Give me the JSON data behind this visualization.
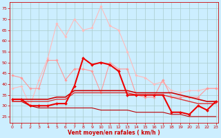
{
  "x": [
    0,
    1,
    2,
    3,
    4,
    5,
    6,
    7,
    8,
    9,
    10,
    11,
    12,
    13,
    14,
    15,
    16,
    17,
    18,
    19,
    20,
    21,
    22,
    23
  ],
  "series": [
    {
      "values": [
        44,
        43,
        38,
        38,
        51,
        51,
        42,
        47,
        47,
        46,
        36,
        50,
        47,
        47,
        35,
        34,
        34,
        42,
        34,
        34,
        34,
        34,
        38,
        38
      ],
      "color": "#ff9999",
      "lw": 0.8,
      "marker": "D",
      "ms": 1.8,
      "zorder": 3
    },
    {
      "values": [
        38,
        39,
        30,
        42,
        52,
        68,
        62,
        70,
        65,
        66,
        76,
        67,
        65,
        55,
        44,
        43,
        40,
        41,
        37,
        36,
        37,
        37,
        38,
        38
      ],
      "color": "#ffbbbb",
      "lw": 0.8,
      "marker": "D",
      "ms": 1.8,
      "zorder": 2
    },
    {
      "values": [
        33,
        33,
        33,
        33,
        33,
        34,
        34,
        37,
        37,
        37,
        37,
        37,
        37,
        37,
        36,
        36,
        36,
        36,
        36,
        35,
        34,
        33,
        32,
        32
      ],
      "color": "#cc0000",
      "lw": 1.2,
      "marker": null,
      "ms": 0,
      "zorder": 4
    },
    {
      "values": [
        32,
        32,
        32,
        32,
        32,
        33,
        33,
        36,
        36,
        36,
        36,
        36,
        36,
        36,
        35,
        35,
        35,
        35,
        34,
        33,
        32,
        31,
        31,
        31
      ],
      "color": "#dd3333",
      "lw": 1.0,
      "marker": null,
      "ms": 0,
      "zorder": 4
    },
    {
      "values": [
        33,
        33,
        30,
        30,
        30,
        31,
        31,
        39,
        52,
        49,
        50,
        49,
        46,
        35,
        35,
        35,
        35,
        35,
        27,
        27,
        26,
        30,
        28,
        32
      ],
      "color": "#ee0000",
      "lw": 1.5,
      "marker": "D",
      "ms": 2.0,
      "zorder": 5
    },
    {
      "values": [
        32,
        32,
        30,
        29,
        29,
        29,
        29,
        29,
        29,
        29,
        28,
        28,
        28,
        28,
        27,
        27,
        27,
        27,
        26,
        26,
        25,
        25,
        25,
        25
      ],
      "color": "#bb0000",
      "lw": 0.8,
      "marker": null,
      "ms": 0,
      "zorder": 3
    }
  ],
  "xlim": [
    -0.3,
    23.3
  ],
  "ylim": [
    22,
    78
  ],
  "yticks": [
    25,
    30,
    35,
    40,
    45,
    50,
    55,
    60,
    65,
    70,
    75
  ],
  "xticks": [
    0,
    1,
    2,
    3,
    4,
    5,
    6,
    7,
    8,
    9,
    10,
    11,
    12,
    13,
    14,
    15,
    16,
    17,
    18,
    19,
    20,
    21,
    22,
    23
  ],
  "xlabel": "Vent moyen/en rafales ( km/h )",
  "bg_color": "#cceeff",
  "grid_color": "#aacccc",
  "tick_color": "#cc0000",
  "label_color": "#cc0000"
}
